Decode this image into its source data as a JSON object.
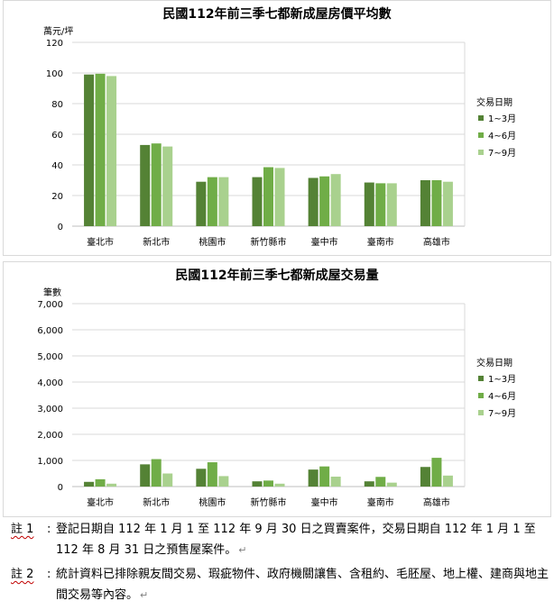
{
  "chart_data": [
    {
      "type": "bar",
      "title": "民國112年前三季七都新成屋房價平均數",
      "ylabel": "萬元/坪",
      "ylim": [
        0,
        120
      ],
      "yticks": [
        "0",
        "20",
        "40",
        "60",
        "80",
        "100",
        "120"
      ],
      "categories": [
        "臺北市",
        "新北市",
        "桃園市",
        "新竹縣市",
        "臺中市",
        "臺南市",
        "高雄市"
      ],
      "legend_title": "交易日期",
      "legend_position": "right",
      "grid": true,
      "series": [
        {
          "name": "1~3月",
          "color": "#548235",
          "values": [
            99,
            53,
            29,
            32,
            31.5,
            28.5,
            30
          ]
        },
        {
          "name": "4~6月",
          "color": "#70ad47",
          "values": [
            99.5,
            54,
            32,
            38.5,
            32.5,
            28,
            30
          ]
        },
        {
          "name": "7~9月",
          "color": "#a9d18e",
          "values": [
            98,
            52,
            32,
            38,
            34,
            28,
            29
          ]
        }
      ]
    },
    {
      "type": "bar",
      "title": "民國112年前三季七都新成屋交易量",
      "ylabel": "筆數",
      "ylim": [
        0,
        7000
      ],
      "yticks": [
        "0",
        "1,000",
        "2,000",
        "3,000",
        "4,000",
        "5,000",
        "6,000",
        "7,000"
      ],
      "categories": [
        "臺北市",
        "新北市",
        "桃園市",
        "新竹縣市",
        "臺中市",
        "臺南市",
        "高雄市"
      ],
      "legend_title": "交易日期",
      "legend_position": "right",
      "grid": true,
      "series": [
        {
          "name": "1~3月",
          "color": "#548235",
          "values": [
            180,
            850,
            680,
            200,
            650,
            200,
            750
          ]
        },
        {
          "name": "4~6月",
          "color": "#70ad47",
          "values": [
            280,
            1050,
            930,
            230,
            770,
            370,
            1100
          ]
        },
        {
          "name": "7~9月",
          "color": "#a9d18e",
          "values": [
            110,
            500,
            400,
            110,
            380,
            150,
            420
          ]
        }
      ]
    }
  ],
  "notes": [
    {
      "label": "註 1",
      "text": "登記日期自 112 年 1 月 1 至 112 年 9 月 30 日之買賣案件，交易日期自 112 年 1 月 1 至 112 年 8 月 31 日之預售屋案件。"
    },
    {
      "label": "註 2",
      "text": "統計資料已排除親友間交易、瑕疵物件、政府機關讓售、含租約、毛胚屋、地上權、建商與地主間交易等內容。"
    }
  ],
  "return_mark": "↵"
}
